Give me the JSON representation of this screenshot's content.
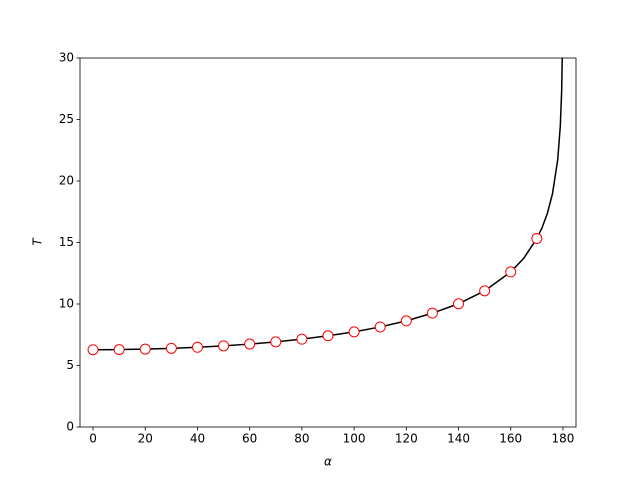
{
  "chart_data": {
    "type": "line",
    "xlabel": "α",
    "ylabel": "T",
    "xlim": [
      -5,
      185
    ],
    "ylim": [
      0,
      30
    ],
    "xticks": [
      0,
      20,
      40,
      60,
      80,
      100,
      120,
      140,
      160,
      180
    ],
    "yticks": [
      0,
      5,
      10,
      15,
      20,
      25,
      30
    ],
    "series": [
      {
        "color": "#000000",
        "style": "line",
        "x": [
          0,
          10,
          20,
          30,
          40,
          50,
          60,
          70,
          80,
          90,
          100,
          110,
          120,
          130,
          140,
          150,
          160,
          165,
          170,
          172,
          174,
          176,
          178,
          179,
          179.5,
          179.8
        ],
        "values": [
          6.283,
          6.295,
          6.332,
          6.393,
          6.481,
          6.596,
          6.743,
          6.923,
          7.142,
          7.416,
          7.737,
          8.134,
          8.626,
          9.256,
          10.02,
          11.07,
          12.61,
          13.72,
          15.33,
          16.2,
          17.35,
          18.97,
          21.74,
          24.51,
          27.28,
          30.95
        ]
      },
      {
        "color": "#ff0000",
        "marker_fill": "#ffffff",
        "style": "markers",
        "x": [
          0,
          10,
          20,
          30,
          40,
          50,
          60,
          70,
          80,
          90,
          100,
          110,
          120,
          130,
          140,
          150,
          160,
          170
        ],
        "values": [
          6.283,
          6.295,
          6.332,
          6.393,
          6.481,
          6.596,
          6.743,
          6.923,
          7.142,
          7.416,
          7.737,
          8.134,
          8.626,
          9.256,
          10.02,
          11.07,
          12.61,
          15.33
        ]
      }
    ]
  }
}
